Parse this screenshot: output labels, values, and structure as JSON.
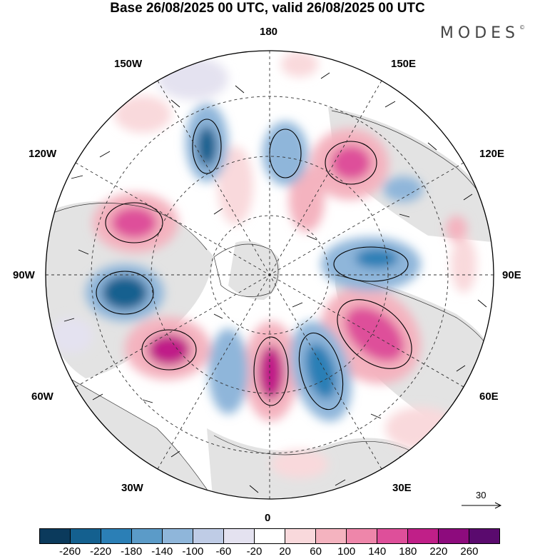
{
  "title": "Base 26/08/2025 00 UTC, valid 26/08/2025 00 UTC",
  "logo": {
    "text": "MODES",
    "mark": "©"
  },
  "map": {
    "projection": "north-polar-stereographic",
    "longitude_labels": {
      "top": "180",
      "bottom": "0",
      "left": "90W",
      "right": "90E",
      "upper_left_1": "150W",
      "upper_left_2": "120W",
      "upper_right_1": "150E",
      "upper_right_2": "120E",
      "lower_left_1": "60W",
      "lower_left_2": "30W",
      "lower_right_1": "60E",
      "lower_right_2": "30E"
    }
  },
  "reference_vector": {
    "label": "30"
  },
  "colorbar": {
    "colors": [
      "#0b3a5c",
      "#14608f",
      "#2b7fb6",
      "#5b9bc8",
      "#8fb6da",
      "#bfcce6",
      "#e4e2f0",
      "#ffffff",
      "#f9d9dc",
      "#f4b3bf",
      "#ee86aa",
      "#de4f9a",
      "#c01f88",
      "#8d0b7d",
      "#5a0a6e"
    ],
    "labels": [
      "-260",
      "-220",
      "-180",
      "-140",
      "-100",
      "-60",
      "-20",
      "20",
      "60",
      "100",
      "140",
      "180",
      "220",
      "260"
    ]
  }
}
